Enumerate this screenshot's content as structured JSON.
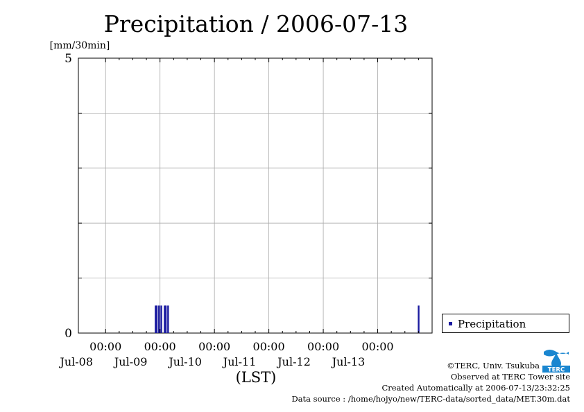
{
  "chart_data": {
    "type": "bar",
    "title": "Precipitation / 2006-07-13",
    "ylabel": "[mm/30min]",
    "xlabel": "(LST)",
    "ylim": [
      0,
      5
    ],
    "yticks": [
      "0",
      "5"
    ],
    "y_grid": [
      1,
      2,
      3,
      4
    ],
    "grid": true,
    "x_range": [
      "2006-07-07 12:00",
      "2006-07-13 24:00"
    ],
    "x_ticks": [
      {
        "time": "2006-07-08 00:00",
        "label": "00:00",
        "date": "Jul-08"
      },
      {
        "time": "2006-07-09 00:00",
        "label": "00:00",
        "date": "Jul-09"
      },
      {
        "time": "2006-07-10 00:00",
        "label": "00:00",
        "date": "Jul-10"
      },
      {
        "time": "2006-07-11 00:00",
        "label": "00:00",
        "date": "Jul-11"
      },
      {
        "time": "2006-07-12 00:00",
        "label": "00:00",
        "date": "Jul-12"
      },
      {
        "time": "2006-07-13 00:00",
        "label": "00:00",
        "date": "Jul-13"
      }
    ],
    "series": [
      {
        "name": "Precipitation",
        "color": "#1a1aa0",
        "points": [
          {
            "time": "2006-07-08 22:00",
            "value": 0.5
          },
          {
            "time": "2006-07-08 22:30",
            "value": 0.5
          },
          {
            "time": "2006-07-08 23:30",
            "value": 0.5
          },
          {
            "time": "2006-07-09 00:30",
            "value": 0.5
          },
          {
            "time": "2006-07-09 02:00",
            "value": 0.5
          },
          {
            "time": "2006-07-09 02:30",
            "value": 0.5
          },
          {
            "time": "2006-07-09 03:30",
            "value": 0.5
          },
          {
            "time": "2006-07-13 18:00",
            "value": 0.5
          }
        ]
      }
    ],
    "legend": {
      "label": "Precipitation",
      "position": "right"
    }
  },
  "credits": {
    "copyright": "©TERC, Univ. Tsukuba",
    "observed": "Observed at TERC Tower site",
    "created": "Created Automatically at 2006-07-13/23:32:25",
    "source": "Data source : /home/hojyo/new/TERC-data/sorted_data/MET.30m.dat"
  },
  "logo": {
    "text": "TERC",
    "color": "#1a86d0"
  }
}
